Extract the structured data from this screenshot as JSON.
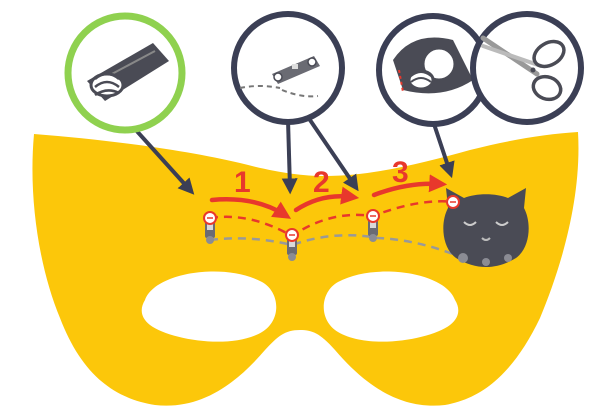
{
  "steps": [
    {
      "number": "1"
    },
    {
      "number": "2"
    },
    {
      "number": "3"
    }
  ],
  "callouts": [
    {
      "name": "callout-knot-sewing",
      "icon": "knot-icon",
      "highlighted": true
    },
    {
      "name": "callout-led-sewing",
      "icon": "led-sequin-icon",
      "highlighted": false
    },
    {
      "name": "callout-tie-off",
      "icon": "tie-off-knot-icon",
      "highlighted": false
    },
    {
      "name": "callout-trim-thread",
      "icon": "scissors-icon",
      "highlighted": false
    }
  ],
  "colors": {
    "mask": "#fcc70a",
    "stitch_arrow": "#e8382c",
    "thread_dashed": "#e8382c",
    "ground_thread": "#999999",
    "callout_ring": "#3b3f55",
    "highlight_ring": "#8fd14f",
    "board": "#4a4b55"
  }
}
